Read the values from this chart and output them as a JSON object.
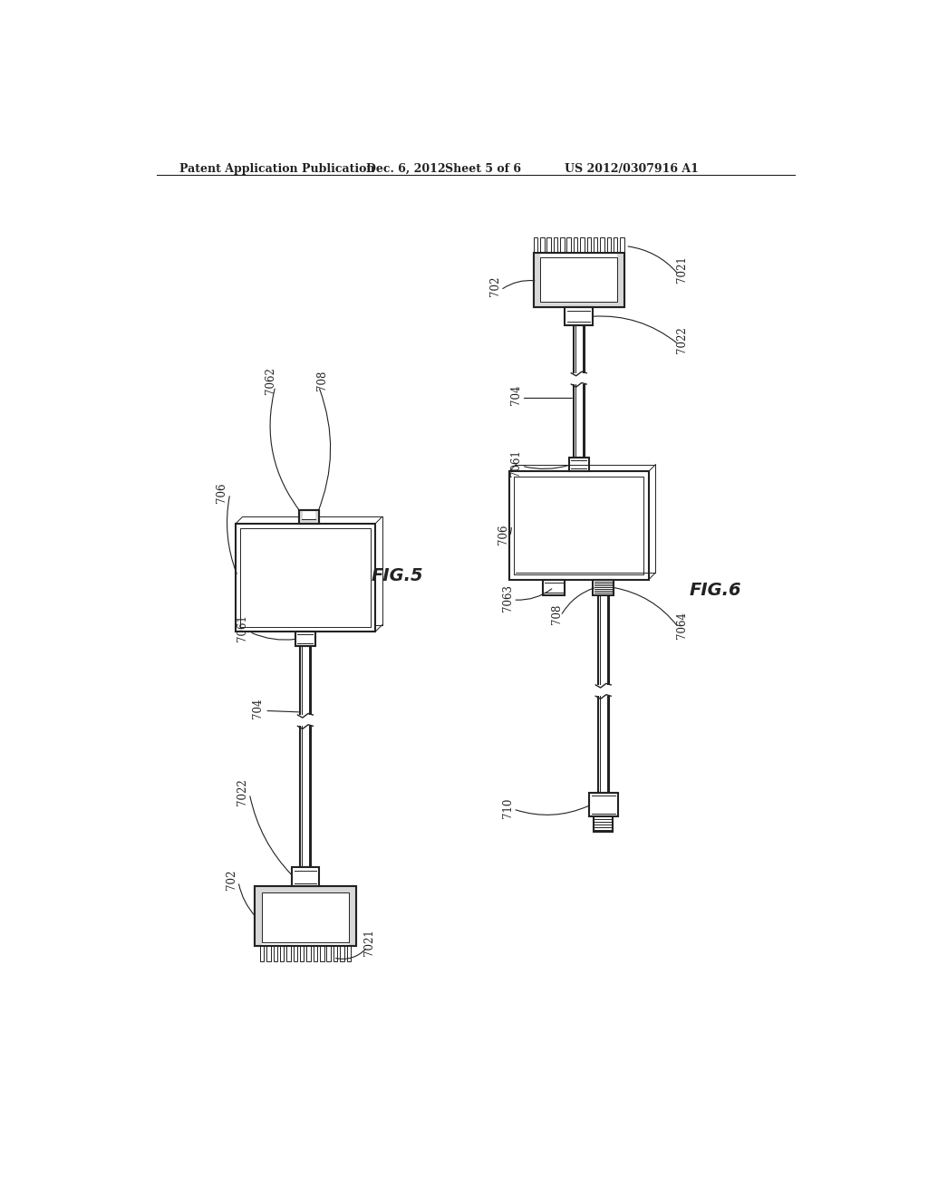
{
  "background_color": "#ffffff",
  "header_text": "Patent Application Publication",
  "header_date": "Dec. 6, 2012",
  "header_sheet": "Sheet 5 of 6",
  "header_patent": "US 2012/0307916 A1",
  "fig5_label": "FIG.5",
  "fig6_label": "FIG.6",
  "line_color": "#222222",
  "line_width": 1.5,
  "thin_line": 0.7,
  "gray_fill": "#d8d8d8"
}
